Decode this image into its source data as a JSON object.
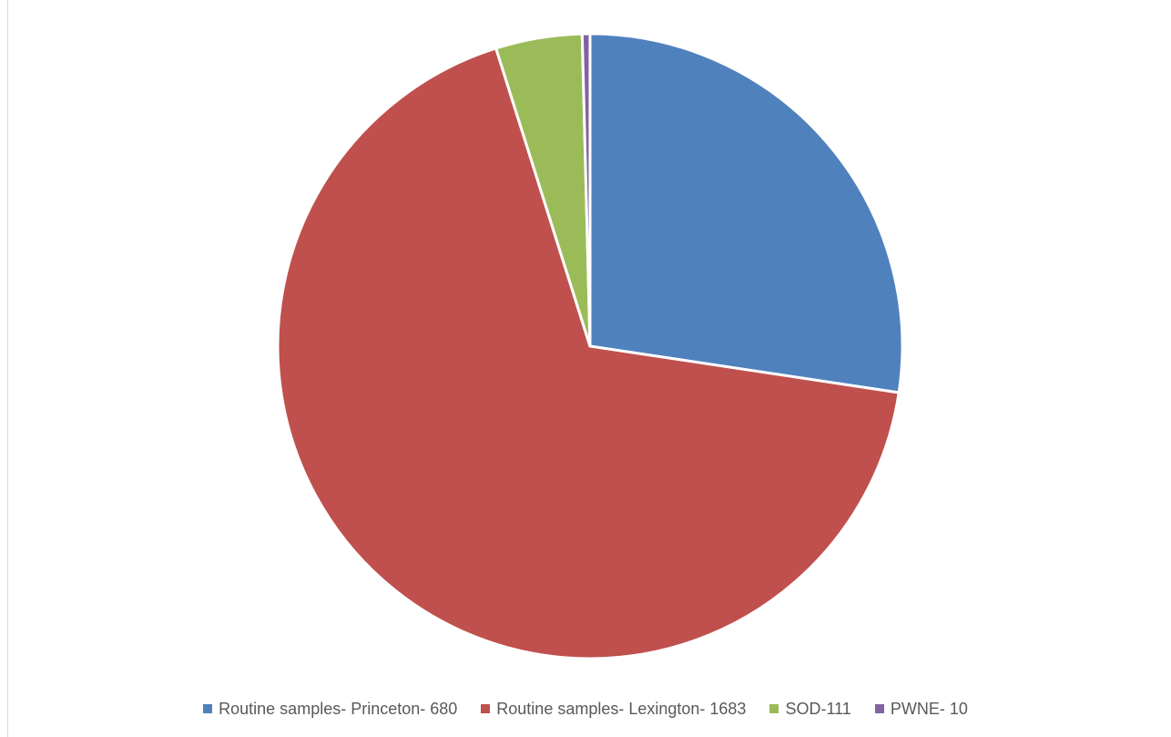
{
  "chart_data": {
    "type": "pie",
    "title": "",
    "slices": [
      {
        "label": "Routine samples- Princeton- 680",
        "value": 680,
        "color": "#4f81bd"
      },
      {
        "label": "Routine samples- Lexington- 1683",
        "value": 1683,
        "color": "#c0504d"
      },
      {
        "label": "SOD-111",
        "value": 111,
        "color": "#9bbb59"
      },
      {
        "label": "PWNE- 10",
        "value": 10,
        "color": "#8064a2"
      }
    ],
    "start_angle": "12 o'clock",
    "direction": "clockwise",
    "legend_position": "bottom"
  }
}
